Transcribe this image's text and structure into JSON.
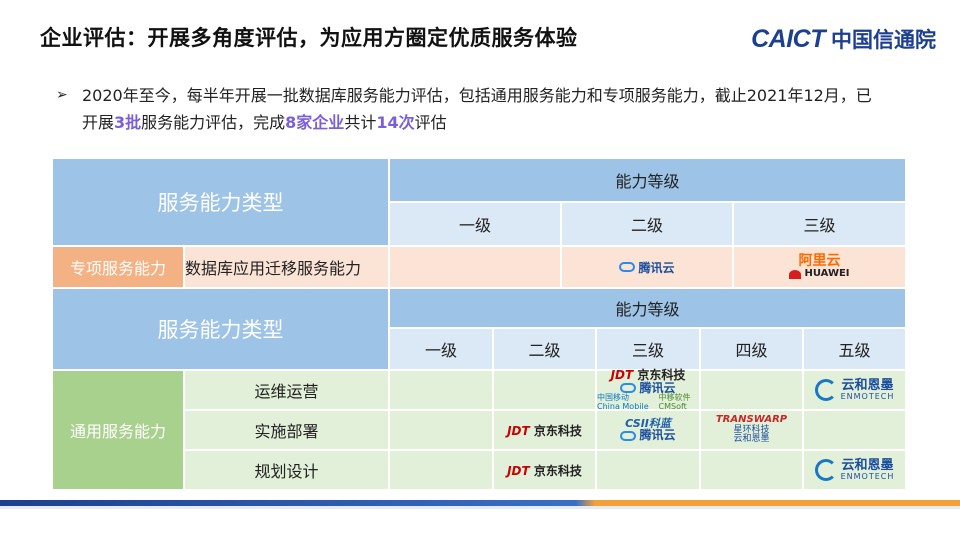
{
  "header": {
    "title": "企业评估：开展多角度评估，为应用方圈定优质服务体验",
    "brand_en": "CAICT",
    "brand_cn": "中国信通院"
  },
  "bullet": {
    "arrow": "➢",
    "text_a": "2020年至今，每半年开展一批数据库服务能力评估，包括通用服务能力和专项服务能力，截止2021年12月，已开展",
    "hl1": "3批",
    "text_b": "服务能力评估，完成",
    "hl2": "8家企业",
    "text_c": "共计",
    "hl3": "14次",
    "text_d": "评估"
  },
  "table1": {
    "type_header": "服务能力类型",
    "level_header": "能力等级",
    "levels": [
      "一级",
      "二级",
      "三级"
    ],
    "category": "专项服务能力",
    "item": "数据库应用迁移服务能力",
    "level2_logos": [
      "腾讯云"
    ],
    "level3_logos": [
      "阿里云",
      "HUAWEI"
    ]
  },
  "table2": {
    "type_header": "服务能力类型",
    "level_header": "能力等级",
    "levels": [
      "一级",
      "二级",
      "三级",
      "四级",
      "五级"
    ],
    "category": "通用服务能力",
    "rows": [
      {
        "label": "运维运营"
      },
      {
        "label": "实施部署"
      },
      {
        "label": "规划设计"
      }
    ],
    "logos": {
      "jdt": "JDT",
      "jdt_cn": "京东科技",
      "tencent": "腾讯云",
      "mobile_cn": "中国移动",
      "mobile_en": "China Mobile",
      "cmsoft_cn": "中移软件",
      "cmsoft_en": "CMSoft",
      "csii": "CSII科蓝",
      "transwarp": "TRANSWARP",
      "transwarp_cn": "星环科技",
      "enmo_cn": "云和恩墨",
      "enmo_en": "ENMOTECH"
    }
  }
}
